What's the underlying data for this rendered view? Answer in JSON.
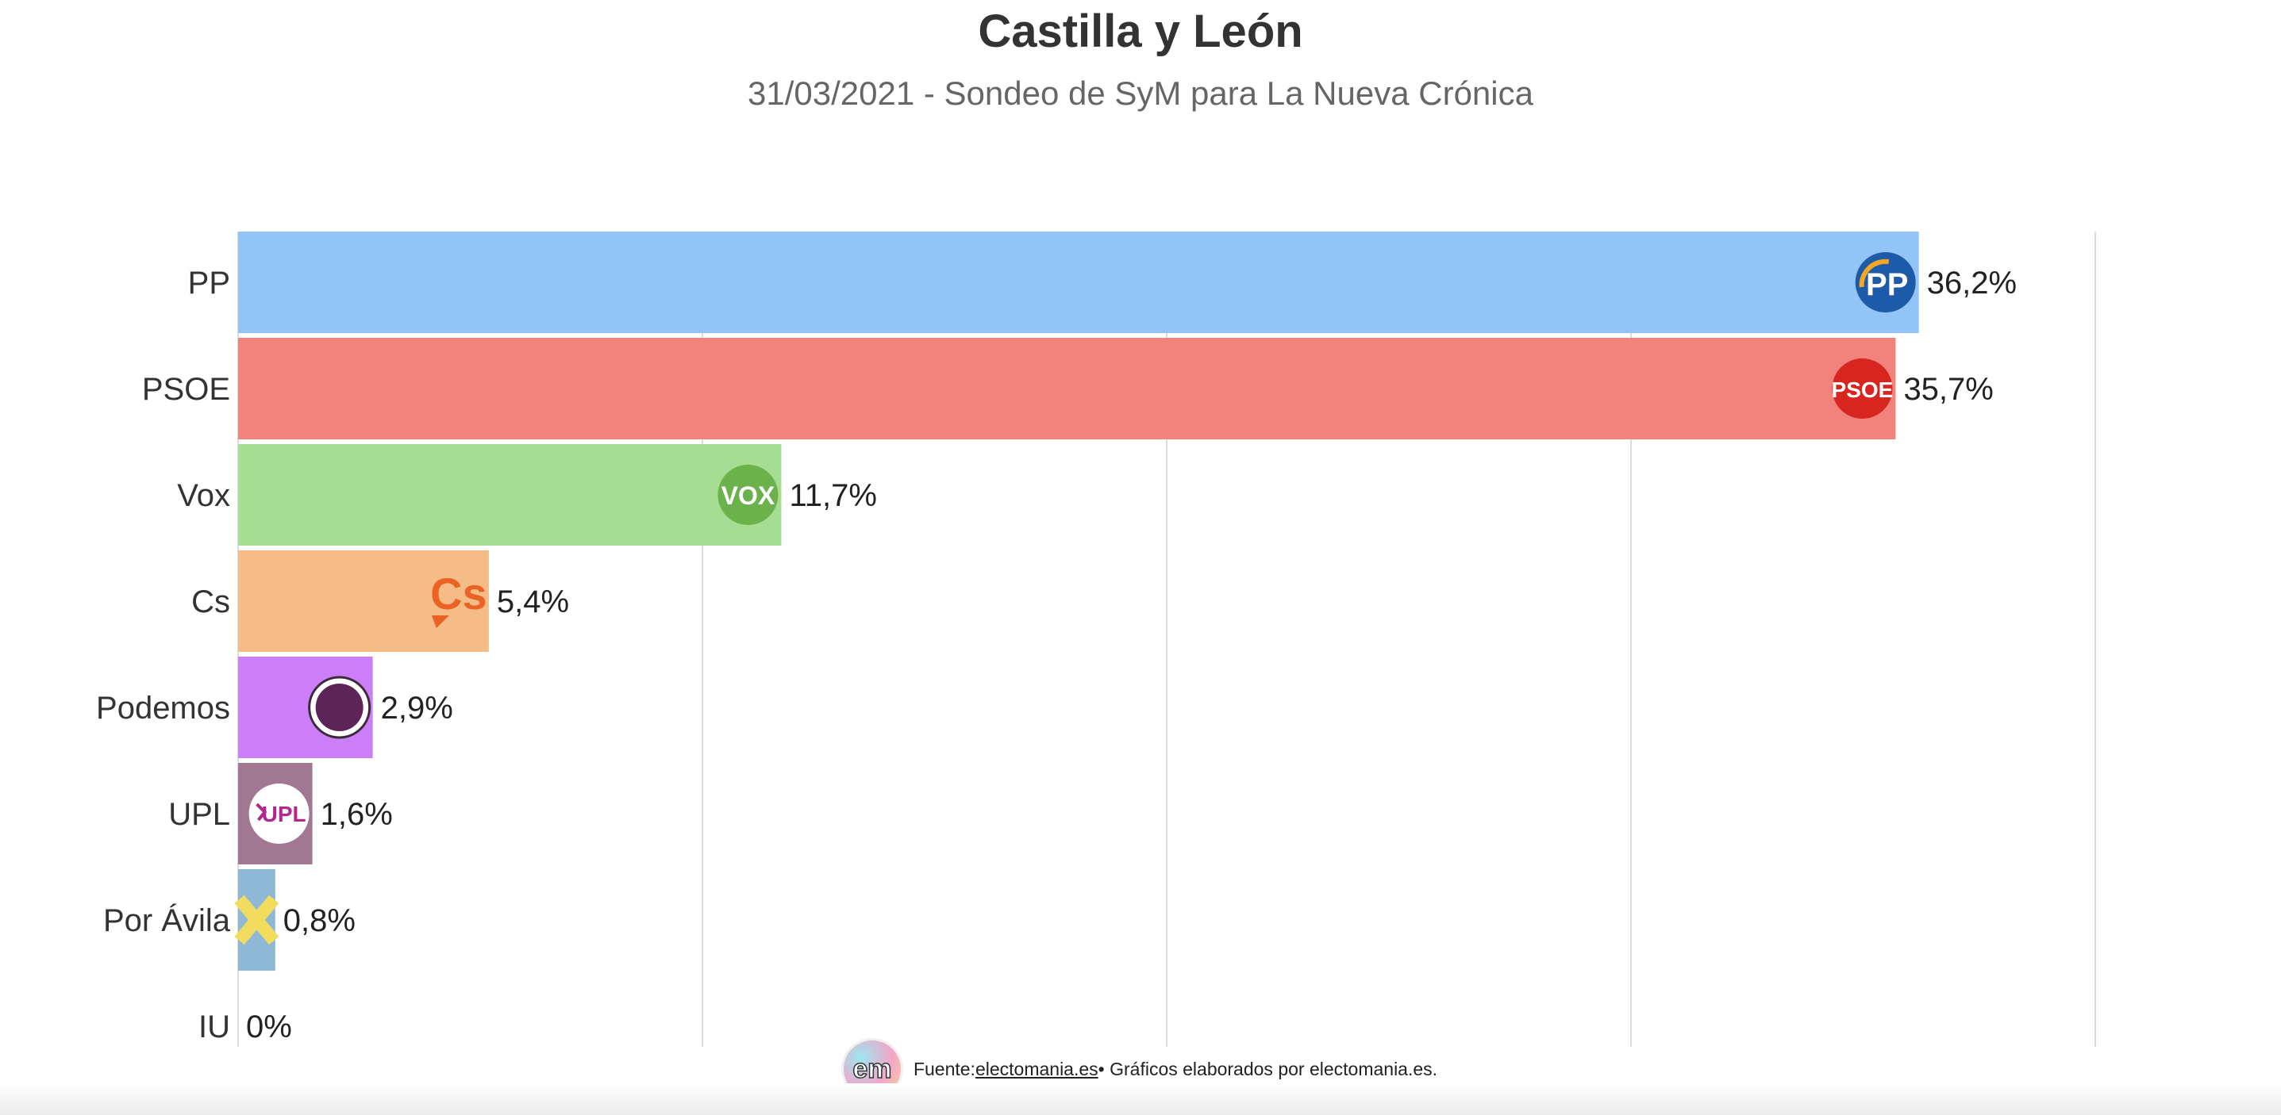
{
  "header": {
    "title": "Castilla y León",
    "subtitle": "31/03/2021 - Sondeo de SyM para La Nueva Crónica"
  },
  "chart_data": {
    "type": "bar",
    "orientation": "horizontal",
    "title": "Castilla y León",
    "subtitle": "31/03/2021 - Sondeo de SyM para La Nueva Crónica",
    "categories": [
      "PP",
      "PSOE",
      "Vox",
      "Cs",
      "Podemos",
      "UPL",
      "Por Ávila",
      "IU"
    ],
    "values": [
      36.2,
      35.7,
      11.7,
      5.4,
      2.9,
      1.6,
      0.8,
      0
    ],
    "value_labels": [
      "36,2%",
      "35,7%",
      "11,7%",
      "5,4%",
      "2,9%",
      "1,6%",
      "0,8%",
      "0%"
    ],
    "colors": [
      "#93c4f8",
      "#f2837c",
      "#a5de93",
      "#f6bc87",
      "#cc7ef7",
      "#a07891",
      "#8fb8d4",
      "#bbbbbb"
    ],
    "logos": [
      "pp-logo-icon",
      "psoe-logo-icon",
      "vox-logo-icon",
      "cs-logo-icon",
      "podemos-logo-icon",
      "upl-logo-icon",
      "por-avila-logo-icon",
      ""
    ],
    "logo_text": [
      "PP",
      "PSOE",
      "VOX",
      "Cs",
      "",
      "UPL",
      "",
      ""
    ],
    "xlim": [
      0,
      40
    ],
    "grid": true,
    "xlabel": "",
    "ylabel": ""
  },
  "footer": {
    "logo_text": "em",
    "prefix": "Fuente: ",
    "link": "electomania.es",
    "suffix": " • Gráficos elaborados por electomania.es."
  }
}
